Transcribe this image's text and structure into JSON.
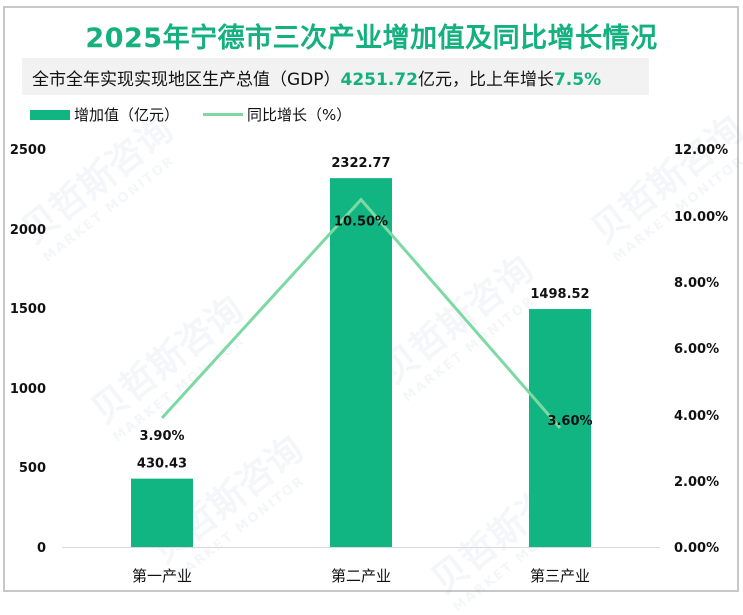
{
  "chart_data": {
    "type": "bar",
    "title": "2025年宁德市三次产业增加值及同比增长情况",
    "subtitle": {
      "prefix": "全市全年实现实现地区生产总值（GDP）",
      "gdp_value": "4251.72",
      "middle": "亿元，比上年增长",
      "growth": "7.5%"
    },
    "categories": [
      "第一产业",
      "第二产业",
      "第三产业"
    ],
    "series": [
      {
        "name": "增加值（亿元）",
        "type": "bar",
        "axis": "left",
        "color": "#10B582",
        "values": [
          430.43,
          2322.77,
          1498.52
        ],
        "labels": [
          "430.43",
          "2322.77",
          "1498.52"
        ]
      },
      {
        "name": "同比增长（%）",
        "type": "line",
        "axis": "right",
        "color": "#7DD9A3",
        "values": [
          3.9,
          10.5,
          3.6
        ],
        "labels": [
          "3.90%",
          "10.50%",
          "3.60%"
        ]
      }
    ],
    "left_axis": {
      "ylim": [
        0,
        2500
      ],
      "ticks": [
        "0",
        "500",
        "1000",
        "1500",
        "2000",
        "2500"
      ]
    },
    "right_axis": {
      "ylim": [
        0,
        12
      ],
      "ticks": [
        "0.00%",
        "2.00%",
        "4.00%",
        "6.00%",
        "8.00%",
        "10.00%",
        "12.00%"
      ]
    },
    "xlabel": "",
    "ylabel": "",
    "legend_position": "top-left",
    "grid": false
  },
  "watermark": {
    "cn": "贝哲斯咨询",
    "en": "MARKET MONITOR"
  }
}
